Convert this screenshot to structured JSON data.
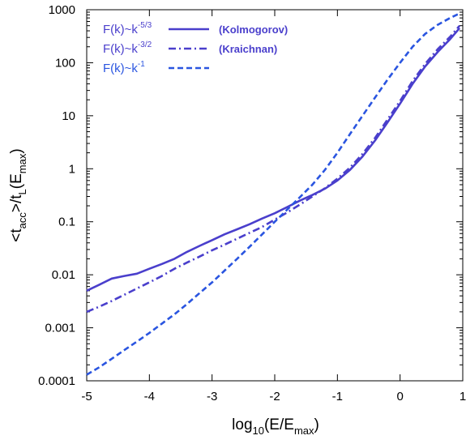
{
  "chart_data": {
    "type": "line",
    "title": "",
    "xlabel": {
      "base": "log",
      "sub1": "10",
      "mid": "(E/E",
      "sub2": "max",
      "end": ")"
    },
    "ylabel": {
      "p1": "<t",
      "sub1": "acc",
      "p2": ">/t",
      "sub2": "L",
      "p3": "(E",
      "sub3": "max",
      "p4": ")"
    },
    "xlim": [
      -5,
      1
    ],
    "ylim": [
      0.0001,
      1000
    ],
    "yscale": "log",
    "grid": false,
    "legend_position": "top-left",
    "x_ticks": [
      -5,
      -4,
      -3,
      -2,
      -1,
      0,
      1
    ],
    "x_tick_labels": [
      "-5",
      "-4",
      "-3",
      "-2",
      "-1",
      "0",
      "1"
    ],
    "y_ticks": [
      0.0001,
      0.001,
      0.01,
      0.1,
      1,
      10,
      100,
      1000
    ],
    "y_tick_labels": [
      "0.0001",
      "0.001",
      "0.01",
      "0.1",
      "1",
      "10",
      "100",
      "1000"
    ],
    "series": [
      {
        "label_base": "F(k)~k",
        "label_exp": "-5/3",
        "note": "(Kolmogorov)",
        "style": "solid",
        "color": "#4a3fcc",
        "x": [
          -5,
          -4.8,
          -4.6,
          -4.4,
          -4.2,
          -4.0,
          -3.8,
          -3.6,
          -3.4,
          -3.2,
          -3.0,
          -2.8,
          -2.6,
          -2.4,
          -2.2,
          -2.0,
          -1.8,
          -1.6,
          -1.4,
          -1.2,
          -1.0,
          -0.8,
          -0.6,
          -0.4,
          -0.2,
          0.0,
          0.2,
          0.4,
          0.6,
          0.8,
          0.95
        ],
        "y": [
          0.005,
          0.0065,
          0.0085,
          0.0095,
          0.0105,
          0.013,
          0.016,
          0.02,
          0.027,
          0.035,
          0.045,
          0.058,
          0.072,
          0.09,
          0.115,
          0.145,
          0.19,
          0.25,
          0.32,
          0.42,
          0.6,
          0.95,
          1.7,
          3.4,
          7.5,
          17,
          40,
          85,
          160,
          280,
          450
        ]
      },
      {
        "label_base": "F(k)~k",
        "label_exp": "-3/2",
        "note": "(Kraichnan)",
        "style": "dashdot",
        "color": "#4a3fcc",
        "x": [
          -5,
          -4.8,
          -4.6,
          -4.4,
          -4.2,
          -4.0,
          -3.8,
          -3.6,
          -3.4,
          -3.2,
          -3.0,
          -2.8,
          -2.6,
          -2.4,
          -2.2,
          -2.0,
          -1.8,
          -1.6,
          -1.4,
          -1.2,
          -1.0,
          -0.8,
          -0.6,
          -0.4,
          -0.2,
          0.0,
          0.2,
          0.4,
          0.6,
          0.8,
          0.95
        ],
        "y": [
          0.002,
          0.0025,
          0.0032,
          0.0042,
          0.0055,
          0.0072,
          0.0095,
          0.013,
          0.017,
          0.022,
          0.029,
          0.037,
          0.048,
          0.062,
          0.08,
          0.11,
          0.15,
          0.21,
          0.3,
          0.43,
          0.65,
          1.05,
          1.9,
          3.8,
          8.5,
          19,
          45,
          95,
          180,
          310,
          500
        ]
      },
      {
        "label_base": "F(k)~k",
        "label_exp": "-1",
        "note": "",
        "style": "dashed",
        "color": "#2a55e0",
        "x": [
          -5,
          -4.8,
          -4.6,
          -4.4,
          -4.2,
          -4.0,
          -3.8,
          -3.6,
          -3.4,
          -3.2,
          -3.0,
          -2.8,
          -2.6,
          -2.4,
          -2.2,
          -2.0,
          -1.8,
          -1.6,
          -1.4,
          -1.2,
          -1.0,
          -0.8,
          -0.6,
          -0.4,
          -0.2,
          0.0,
          0.2,
          0.4,
          0.6,
          0.8,
          0.95
        ],
        "y": [
          0.00013,
          0.00018,
          0.00026,
          0.00038,
          0.00055,
          0.0008,
          0.0012,
          0.0018,
          0.0028,
          0.0045,
          0.0072,
          0.012,
          0.02,
          0.034,
          0.058,
          0.1,
          0.17,
          0.29,
          0.5,
          0.95,
          2.0,
          4.5,
          10,
          22,
          48,
          100,
          200,
          350,
          520,
          700,
          850
        ]
      }
    ]
  }
}
